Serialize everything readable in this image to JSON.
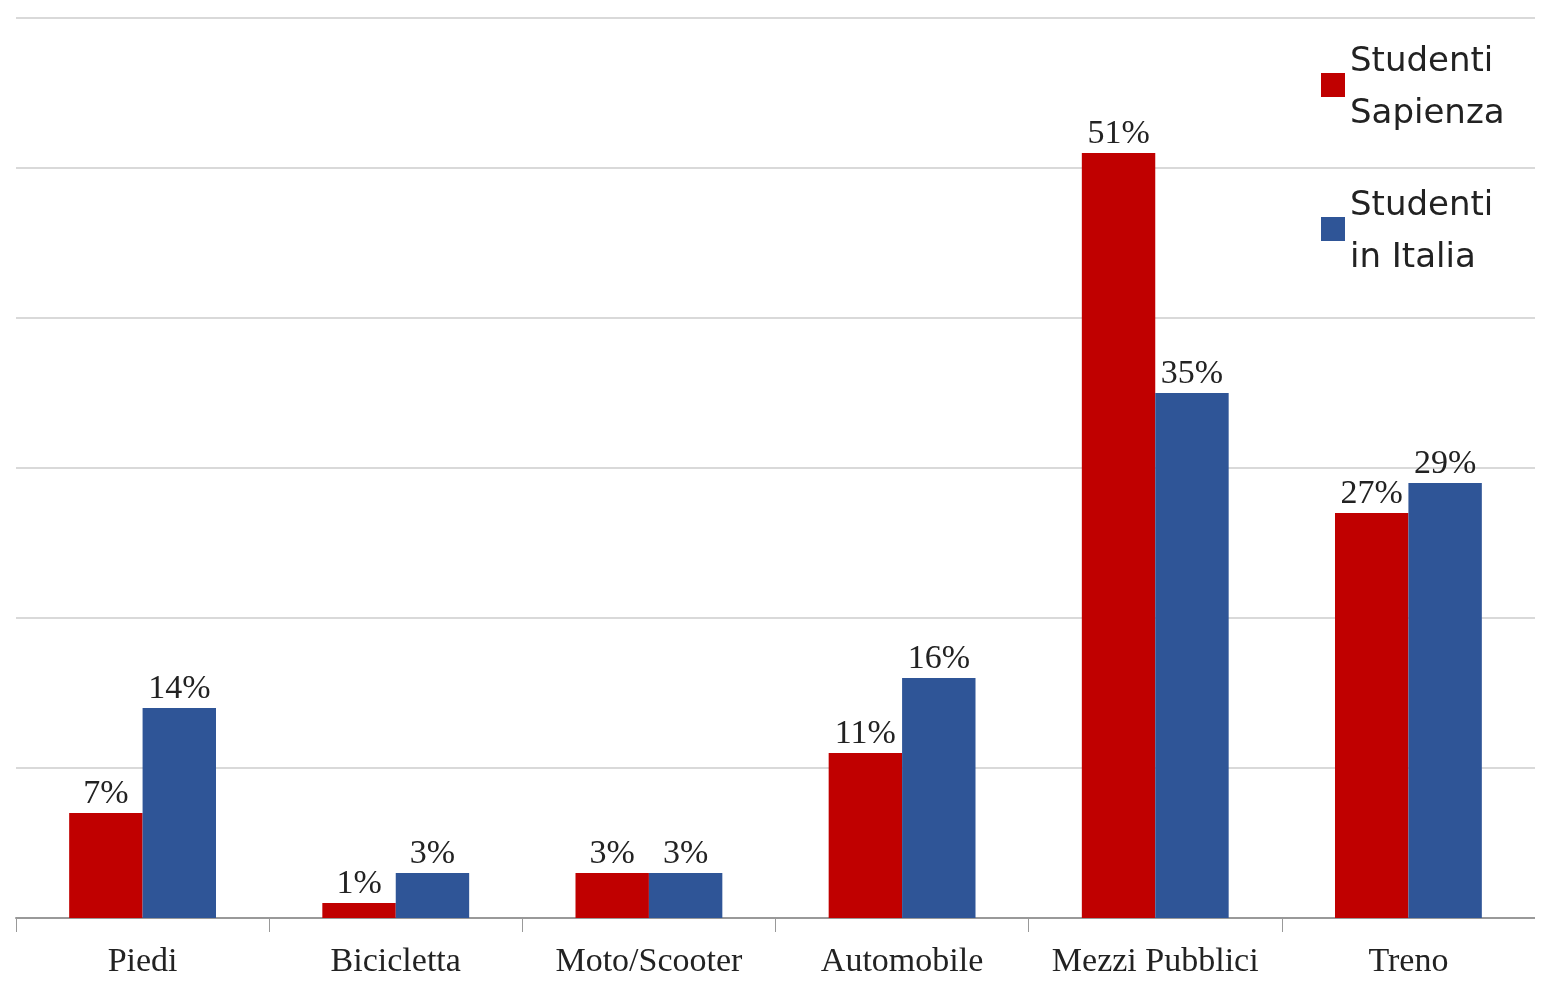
{
  "chart_data": {
    "type": "bar",
    "categories": [
      "Piedi",
      "Bicicletta",
      "Moto/Scooter",
      "Automobile",
      "Mezzi Pubblici",
      "Treno"
    ],
    "series": [
      {
        "name": "Studenti Sapienza",
        "color": "#c00000",
        "values": [
          7,
          1,
          3,
          11,
          51,
          27
        ],
        "value_labels": [
          "7%",
          "1%",
          "3%",
          "11%",
          "51%",
          "27%"
        ]
      },
      {
        "name": "Studenti in Italia",
        "color": "#2f5597",
        "values": [
          14,
          3,
          3,
          16,
          35,
          29
        ],
        "value_labels": [
          "14%",
          "3%",
          "3%",
          "16%",
          "35%",
          "29%"
        ]
      }
    ],
    "ylim": [
      0,
      60
    ],
    "yticks": [
      {
        "value": 0,
        "label": null
      },
      {
        "value": 10,
        "label": null
      },
      {
        "value": 20,
        "label": null
      },
      {
        "value": 30,
        "label": null
      },
      {
        "value": 40,
        "label": null
      },
      {
        "value": 50,
        "label": null
      },
      {
        "value": 60,
        "label": null
      }
    ],
    "grid": "y",
    "legend": "top right",
    "tick_labels": "x"
  }
}
